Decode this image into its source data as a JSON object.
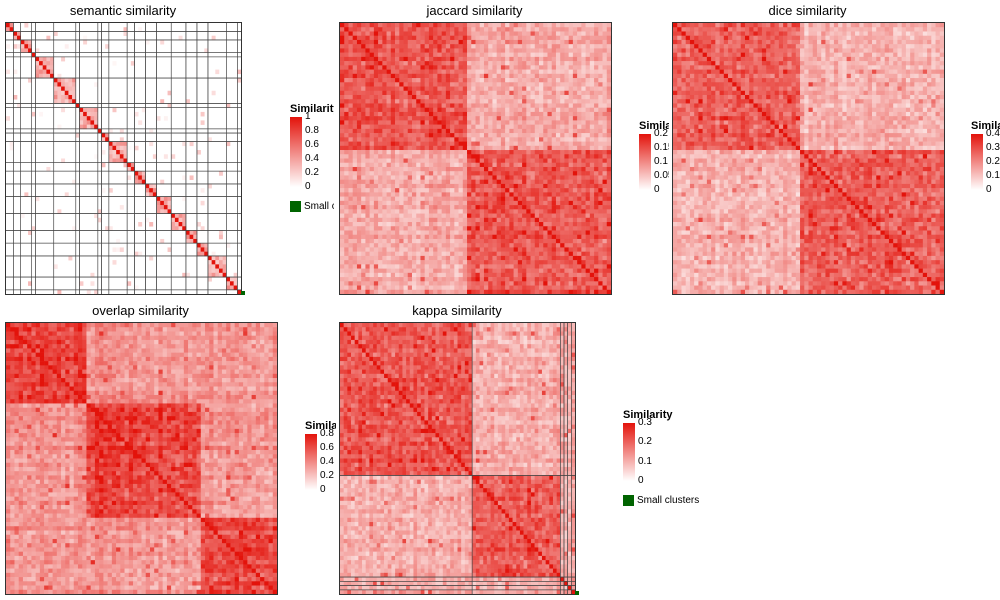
{
  "colors": {
    "low": "#ffffff",
    "high": "#e3130b",
    "small_clusters": "#006400",
    "grid": "#444444"
  },
  "chart_data": [
    {
      "id": "semantic",
      "type": "heatmap",
      "title": "semantic similarity",
      "legend": {
        "title": "Similarity",
        "ticks": [
          "1",
          "0.8",
          "0.6",
          "0.4",
          "0.2",
          "0"
        ],
        "max": 1,
        "small_clusters": "Small clusters"
      },
      "seed": 11,
      "blocks": 18,
      "offdiag": 0.1,
      "pattern": "semantic"
    },
    {
      "id": "jaccard",
      "type": "heatmap",
      "title": "jaccard similarity",
      "legend": {
        "title": "Similarity",
        "ticks": [
          "0.2",
          "0.15",
          "0.1",
          "0.05",
          "0"
        ],
        "max": 0.2
      },
      "seed": 23,
      "blocks": 2,
      "offdiag": 0.35,
      "pattern": "dense"
    },
    {
      "id": "dice",
      "type": "heatmap",
      "title": "dice similarity",
      "legend": {
        "title": "Similarity",
        "ticks": [
          "0.4",
          "0.3",
          "0.2",
          "0.1",
          "0"
        ],
        "max": 0.4
      },
      "seed": 37,
      "blocks": 2,
      "offdiag": 0.3,
      "pattern": "dense"
    },
    {
      "id": "overlap",
      "type": "heatmap",
      "title": "overlap similarity",
      "legend": {
        "title": "Similarity",
        "ticks": [
          "0.8",
          "0.6",
          "0.4",
          "0.2",
          "0"
        ],
        "max": 0.8
      },
      "seed": 51,
      "blocks": 3,
      "offdiag": 0.45,
      "pattern": "dense"
    },
    {
      "id": "kappa",
      "type": "heatmap",
      "title": "kappa similarity",
      "legend": {
        "title": "Similarity",
        "ticks": [
          "0.3",
          "0.2",
          "0.1",
          "0"
        ],
        "max": 0.3,
        "small_clusters": "Small clusters"
      },
      "seed": 67,
      "blocks": 2,
      "offdiag": 0.35,
      "pattern": "kappa"
    }
  ]
}
